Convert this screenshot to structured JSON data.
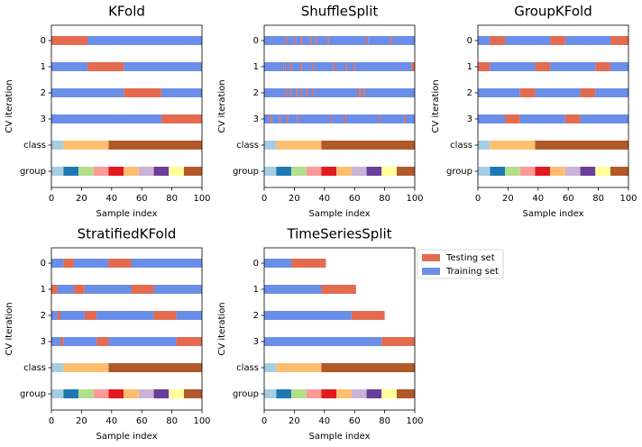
{
  "chart_data": [
    {
      "type": "cv_split",
      "title": "KFold",
      "xlabel": "Sample index",
      "ylabel": "CV iteration",
      "categories": [
        "0",
        "1",
        "2",
        "3",
        "class",
        "group"
      ],
      "xlim": [
        0,
        100
      ],
      "xticks": [
        0,
        20,
        40,
        60,
        80,
        100
      ],
      "series": [
        {
          "color": "#e36b50",
          "intervals": [
            [
              [
                0,
                24
              ]
            ],
            [
              [
                24,
                48
              ]
            ],
            [
              [
                48,
                73
              ]
            ],
            [
              [
                73,
                100
              ]
            ]
          ]
        },
        {
          "color": "#6b8ee8",
          "intervals": [
            [
              [
                24,
                100
              ]
            ],
            [
              [
                0,
                24
              ],
              [
                48,
                100
              ]
            ],
            [
              [
                0,
                48
              ],
              [
                73,
                100
              ]
            ],
            [
              [
                0,
                73
              ]
            ]
          ]
        }
      ],
      "class": {
        "intervals": [
          [
            0,
            8
          ],
          [
            8,
            38
          ],
          [
            38,
            100
          ]
        ],
        "colors": [
          "#a6cee3",
          "#fdbf6f",
          "#b15928"
        ]
      },
      "group": {
        "intervals": [
          [
            0,
            8
          ],
          [
            8,
            18
          ],
          [
            18,
            28
          ],
          [
            28,
            38
          ],
          [
            38,
            48
          ],
          [
            48,
            58
          ],
          [
            58,
            68
          ],
          [
            68,
            78
          ],
          [
            78,
            88
          ],
          [
            88,
            100
          ]
        ],
        "colors": [
          "#a6cee3",
          "#1f78b4",
          "#b2df8a",
          "#fb9a99",
          "#e31a1c",
          "#fdbf6f",
          "#cab2d6",
          "#6a3d9a",
          "#ffff99",
          "#b15928"
        ]
      }
    },
    {
      "type": "cv_split",
      "title": "ShuffleSplit",
      "xlabel": "Sample index",
      "ylabel": "CV iteration",
      "categories": [
        "0",
        "1",
        "2",
        "3",
        "class",
        "group"
      ],
      "xlim": [
        0,
        100
      ],
      "xticks": [
        0,
        20,
        40,
        60,
        80,
        100
      ],
      "series": [
        {
          "color": "#e36b50",
          "intervals": [
            [
              [
                14,
                15
              ],
              [
                20,
                21
              ],
              [
                24,
                25
              ],
              [
                30,
                31
              ],
              [
                34,
                35
              ],
              [
                42,
                43
              ],
              [
                68,
                69
              ],
              [
                84,
                85
              ]
            ],
            [
              [
                13,
                14
              ],
              [
                17,
                18
              ],
              [
                24,
                25
              ],
              [
                32,
                33
              ],
              [
                46,
                47
              ],
              [
                54,
                55
              ],
              [
                59,
                60
              ],
              [
                98,
                100
              ]
            ],
            [
              [
                14,
                15
              ],
              [
                17,
                18
              ],
              [
                21,
                22
              ],
              [
                24,
                25
              ],
              [
                28,
                29
              ],
              [
                32,
                33
              ],
              [
                62,
                63
              ],
              [
                64,
                65
              ],
              [
                66,
                67
              ]
            ],
            [
              [
                4,
                5
              ],
              [
                10,
                11
              ],
              [
                15,
                16
              ],
              [
                22,
                23
              ],
              [
                44,
                45
              ],
              [
                53,
                54
              ],
              [
                76,
                77
              ],
              [
                93,
                94
              ]
            ]
          ]
        },
        {
          "color": "#6b8ee8",
          "intervals": [
            [
              [
                0,
                14
              ],
              [
                15,
                20
              ],
              [
                21,
                24
              ],
              [
                25,
                30
              ],
              [
                31,
                34
              ],
              [
                35,
                42
              ],
              [
                43,
                68
              ],
              [
                69,
                84
              ],
              [
                85,
                100
              ]
            ],
            [
              [
                0,
                13
              ],
              [
                14,
                17
              ],
              [
                18,
                24
              ],
              [
                25,
                32
              ],
              [
                33,
                46
              ],
              [
                47,
                54
              ],
              [
                55,
                59
              ],
              [
                60,
                98
              ]
            ],
            [
              [
                0,
                14
              ],
              [
                15,
                17
              ],
              [
                18,
                21
              ],
              [
                22,
                24
              ],
              [
                25,
                28
              ],
              [
                29,
                32
              ],
              [
                33,
                62
              ],
              [
                63,
                64
              ],
              [
                65,
                66
              ],
              [
                67,
                100
              ]
            ],
            [
              [
                0,
                4
              ],
              [
                5,
                10
              ],
              [
                11,
                15
              ],
              [
                16,
                22
              ],
              [
                23,
                44
              ],
              [
                45,
                53
              ],
              [
                54,
                76
              ],
              [
                77,
                93
              ],
              [
                94,
                100
              ]
            ]
          ]
        }
      ],
      "class": {
        "intervals": [
          [
            0,
            8
          ],
          [
            8,
            38
          ],
          [
            38,
            100
          ]
        ],
        "colors": [
          "#a6cee3",
          "#fdbf6f",
          "#b15928"
        ]
      },
      "group": {
        "intervals": [
          [
            0,
            8
          ],
          [
            8,
            18
          ],
          [
            18,
            28
          ],
          [
            28,
            38
          ],
          [
            38,
            48
          ],
          [
            48,
            58
          ],
          [
            58,
            68
          ],
          [
            68,
            78
          ],
          [
            78,
            88
          ],
          [
            88,
            100
          ]
        ],
        "colors": [
          "#a6cee3",
          "#1f78b4",
          "#b2df8a",
          "#fb9a99",
          "#e31a1c",
          "#fdbf6f",
          "#cab2d6",
          "#6a3d9a",
          "#ffff99",
          "#b15928"
        ]
      }
    },
    {
      "type": "cv_split",
      "title": "GroupKFold",
      "xlabel": "Sample index",
      "ylabel": "CV iteration",
      "categories": [
        "0",
        "1",
        "2",
        "3",
        "class",
        "group"
      ],
      "xlim": [
        0,
        100
      ],
      "xticks": [
        0,
        20,
        40,
        60,
        80,
        100
      ],
      "series": [
        {
          "color": "#e36b50",
          "intervals": [
            [
              [
                8,
                18
              ],
              [
                48,
                58
              ],
              [
                88,
                100
              ]
            ],
            [
              [
                0,
                8
              ],
              [
                38,
                48
              ],
              [
                78,
                88
              ]
            ],
            [
              [
                28,
                38
              ],
              [
                68,
                78
              ]
            ],
            [
              [
                18,
                28
              ],
              [
                58,
                68
              ]
            ]
          ]
        },
        {
          "color": "#6b8ee8",
          "intervals": [
            [
              [
                0,
                8
              ],
              [
                18,
                48
              ],
              [
                58,
                88
              ]
            ],
            [
              [
                8,
                38
              ],
              [
                48,
                78
              ],
              [
                88,
                100
              ]
            ],
            [
              [
                0,
                28
              ],
              [
                38,
                68
              ],
              [
                78,
                100
              ]
            ],
            [
              [
                0,
                18
              ],
              [
                28,
                58
              ],
              [
                68,
                100
              ]
            ]
          ]
        }
      ],
      "class": {
        "intervals": [
          [
            0,
            8
          ],
          [
            8,
            38
          ],
          [
            38,
            100
          ]
        ],
        "colors": [
          "#a6cee3",
          "#fdbf6f",
          "#b15928"
        ]
      },
      "group": {
        "intervals": [
          [
            0,
            8
          ],
          [
            8,
            18
          ],
          [
            18,
            28
          ],
          [
            28,
            38
          ],
          [
            38,
            48
          ],
          [
            48,
            58
          ],
          [
            58,
            68
          ],
          [
            68,
            78
          ],
          [
            78,
            88
          ],
          [
            88,
            100
          ]
        ],
        "colors": [
          "#a6cee3",
          "#1f78b4",
          "#b2df8a",
          "#fb9a99",
          "#e31a1c",
          "#fdbf6f",
          "#cab2d6",
          "#6a3d9a",
          "#ffff99",
          "#b15928"
        ]
      }
    },
    {
      "type": "cv_split",
      "title": "StratifiedKFold",
      "xlabel": "Sample index",
      "ylabel": "CV iteration",
      "categories": [
        "0",
        "1",
        "2",
        "3",
        "class",
        "group"
      ],
      "xlim": [
        0,
        100
      ],
      "xticks": [
        0,
        20,
        40,
        60,
        80,
        100
      ],
      "series": [
        {
          "color": "#e36b50",
          "intervals": [
            [
              [
                8,
                15
              ],
              [
                38,
                53
              ]
            ],
            [
              [
                0,
                4
              ],
              [
                15,
                22
              ],
              [
                53,
                68
              ]
            ],
            [
              [
                4,
                6
              ],
              [
                22,
                30
              ],
              [
                68,
                83
              ]
            ],
            [
              [
                6,
                8
              ],
              [
                30,
                38
              ],
              [
                83,
                100
              ]
            ]
          ]
        },
        {
          "color": "#6b8ee8",
          "intervals": [
            [
              [
                0,
                8
              ],
              [
                15,
                38
              ],
              [
                53,
                100
              ]
            ],
            [
              [
                4,
                15
              ],
              [
                22,
                53
              ],
              [
                68,
                100
              ]
            ],
            [
              [
                0,
                4
              ],
              [
                6,
                22
              ],
              [
                30,
                68
              ],
              [
                83,
                100
              ]
            ],
            [
              [
                0,
                6
              ],
              [
                8,
                30
              ],
              [
                38,
                83
              ]
            ]
          ]
        }
      ],
      "class": {
        "intervals": [
          [
            0,
            8
          ],
          [
            8,
            38
          ],
          [
            38,
            100
          ]
        ],
        "colors": [
          "#a6cee3",
          "#fdbf6f",
          "#b15928"
        ]
      },
      "group": {
        "intervals": [
          [
            0,
            8
          ],
          [
            8,
            18
          ],
          [
            18,
            28
          ],
          [
            28,
            38
          ],
          [
            38,
            48
          ],
          [
            48,
            58
          ],
          [
            58,
            68
          ],
          [
            68,
            78
          ],
          [
            78,
            88
          ],
          [
            88,
            100
          ]
        ],
        "colors": [
          "#a6cee3",
          "#1f78b4",
          "#b2df8a",
          "#fb9a99",
          "#e31a1c",
          "#fdbf6f",
          "#cab2d6",
          "#6a3d9a",
          "#ffff99",
          "#b15928"
        ]
      }
    },
    {
      "type": "cv_split",
      "title": "TimeSeriesSplit",
      "xlabel": "Sample index",
      "ylabel": "CV iteration",
      "categories": [
        "0",
        "1",
        "2",
        "3",
        "class",
        "group"
      ],
      "xlim": [
        0,
        100
      ],
      "xticks": [
        0,
        20,
        40,
        60,
        80,
        100
      ],
      "legend": "outside right",
      "series": [
        {
          "name": "Testing set",
          "color": "#e36b50",
          "intervals": [
            [
              [
                18,
                41
              ]
            ],
            [
              [
                38,
                61
              ]
            ],
            [
              [
                58,
                80
              ]
            ],
            [
              [
                78,
                100
              ]
            ]
          ]
        },
        {
          "name": "Training set",
          "color": "#6b8ee8",
          "intervals": [
            [
              [
                0,
                18
              ]
            ],
            [
              [
                0,
                38
              ]
            ],
            [
              [
                0,
                58
              ]
            ],
            [
              [
                0,
                78
              ]
            ]
          ]
        }
      ],
      "class": {
        "intervals": [
          [
            0,
            8
          ],
          [
            8,
            38
          ],
          [
            38,
            100
          ]
        ],
        "colors": [
          "#a6cee3",
          "#fdbf6f",
          "#b15928"
        ]
      },
      "group": {
        "intervals": [
          [
            0,
            8
          ],
          [
            8,
            18
          ],
          [
            18,
            28
          ],
          [
            28,
            38
          ],
          [
            38,
            48
          ],
          [
            48,
            58
          ],
          [
            58,
            68
          ],
          [
            68,
            78
          ],
          [
            78,
            88
          ],
          [
            88,
            100
          ]
        ],
        "colors": [
          "#a6cee3",
          "#1f78b4",
          "#b2df8a",
          "#fb9a99",
          "#e31a1c",
          "#fdbf6f",
          "#cab2d6",
          "#6a3d9a",
          "#ffff99",
          "#b15928"
        ]
      }
    }
  ]
}
